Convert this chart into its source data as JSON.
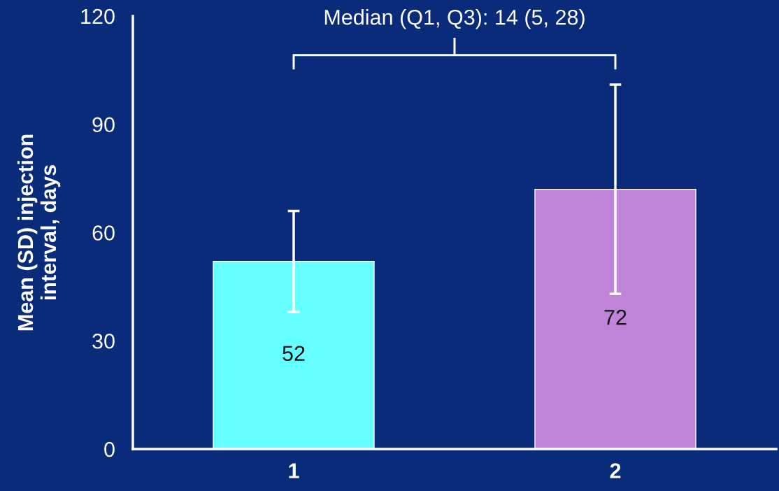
{
  "chart_data": {
    "type": "bar",
    "categories": [
      "1",
      "2"
    ],
    "values": [
      52,
      72
    ],
    "colors": [
      "#66ffff",
      "#bf84d8"
    ],
    "errors": [
      14,
      29
    ],
    "ylabel": "Mean (SD) injection\ninterval, days",
    "ylim": [
      0,
      120
    ],
    "yticks": [
      0,
      30,
      60,
      90,
      120
    ],
    "annotations": [
      "Median (Q1, Q3): 14 (5, 28)"
    ],
    "data_labels": true,
    "grid": false,
    "legend": false
  }
}
